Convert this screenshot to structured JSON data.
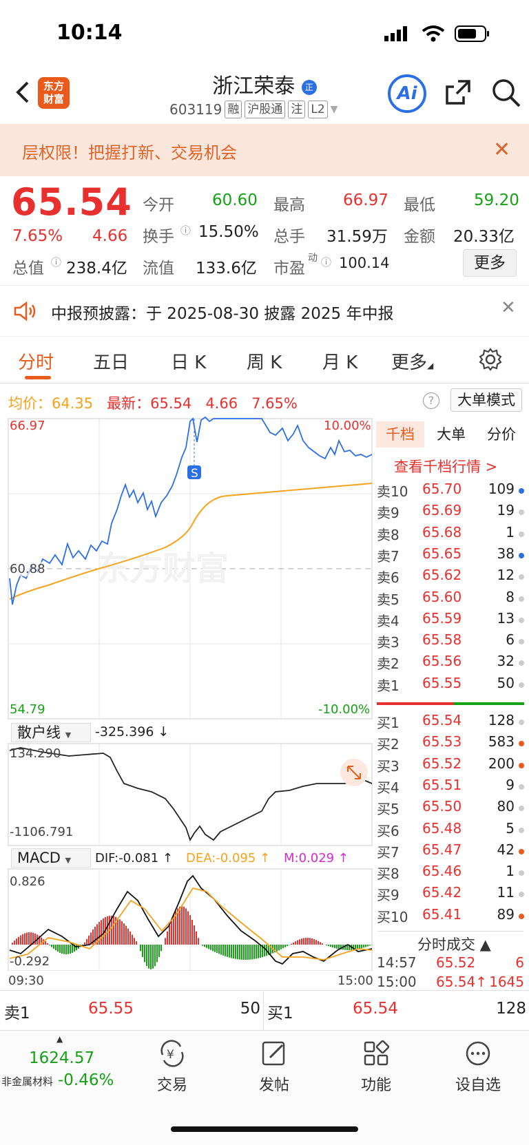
{
  "status_bar": {
    "time": "10:14"
  },
  "header": {
    "logo_text": "东方\n财富",
    "stock_name": "浙江荣泰",
    "stock_code": "603119",
    "tags": [
      "融",
      "沪股通",
      "注",
      "L2"
    ],
    "ai_label": "Ai"
  },
  "banner": {
    "text": "层权限！把握打新、交易机会"
  },
  "quote": {
    "price": "65.54",
    "change_pct": "7.65%",
    "change": "4.66",
    "open_label": "今开",
    "open": "60.60",
    "high_label": "最高",
    "high": "66.97",
    "low_label": "最低",
    "low": "59.20",
    "turnover_label": "换手",
    "turnover": "15.50%",
    "volume_label": "总手",
    "volume": "31.59万",
    "amount_label": "金额",
    "amount": "20.33亿",
    "mktcap_label": "总值",
    "mktcap": "238.4亿",
    "float_label": "流值",
    "float": "133.6亿",
    "pe_label": "市盈",
    "pe_sup": "动",
    "pe": "100.14",
    "more_label": "更多"
  },
  "notice": {
    "text": "中报预披露：于 2025-08-30 披露 2025 年中报"
  },
  "tabs": [
    "分时",
    "五日",
    "日 K",
    "周 K",
    "月 K",
    "更多"
  ],
  "info_row": {
    "avg_label": "均价：",
    "avg": "64.35",
    "latest_label": "最新：",
    "latest": "65.54",
    "change": "4.66",
    "change_pct": "7.65%",
    "big_order_label": "大单模式"
  },
  "chart_labels": {
    "y_top": "66.97",
    "y_mid": "60.88",
    "y_bottom": "54.79",
    "pct_top": "10.00%",
    "pct_bottom": "-10.00%",
    "retail_label": "散户线",
    "retail_value": "-325.396 ↓",
    "retail_top": "134.290",
    "retail_bottom": "-1106.791",
    "macd_label": "MACD",
    "dif": "DIF:-0.081 ↑",
    "dea": "DEA:-0.095 ↑",
    "m": "M:0.029 ↑",
    "macd_top": "0.826",
    "macd_bottom": "-0.292",
    "time_start": "09:30",
    "time_end": "15:00",
    "s_marker": "S",
    "watermark": "东方财富"
  },
  "order_book": {
    "tabs": [
      "千档",
      "大单",
      "分价"
    ],
    "link": "查看千档行情 >",
    "asks": [
      {
        "label": "卖10",
        "price": "65.70",
        "vol": "109",
        "dot": "#2b6fe6"
      },
      {
        "label": "卖9",
        "price": "65.69",
        "vol": "19",
        "dot": "#ccc"
      },
      {
        "label": "卖8",
        "price": "65.68",
        "vol": "1",
        "dot": "#ccc"
      },
      {
        "label": "卖7",
        "price": "65.65",
        "vol": "38",
        "dot": "#2b6fe6"
      },
      {
        "label": "卖6",
        "price": "65.62",
        "vol": "12",
        "dot": "#ccc"
      },
      {
        "label": "卖5",
        "price": "65.60",
        "vol": "8",
        "dot": "#ccc"
      },
      {
        "label": "卖4",
        "price": "65.59",
        "vol": "13",
        "dot": "#ccc"
      },
      {
        "label": "卖3",
        "price": "65.58",
        "vol": "6",
        "dot": "#ccc"
      },
      {
        "label": "卖2",
        "price": "65.56",
        "vol": "32",
        "dot": "#ccc"
      },
      {
        "label": "卖1",
        "price": "65.55",
        "vol": "50",
        "dot": "#ccc"
      }
    ],
    "bids": [
      {
        "label": "买1",
        "price": "65.54",
        "vol": "128",
        "dot": "#ccc"
      },
      {
        "label": "买2",
        "price": "65.53",
        "vol": "583",
        "dot": "#ea5b1b"
      },
      {
        "label": "买3",
        "price": "65.52",
        "vol": "200",
        "dot": "#ea5b1b"
      },
      {
        "label": "买4",
        "price": "65.51",
        "vol": "9",
        "dot": "#ccc"
      },
      {
        "label": "买5",
        "price": "65.50",
        "vol": "80",
        "dot": "#ccc"
      },
      {
        "label": "买6",
        "price": "65.48",
        "vol": "5",
        "dot": "#ccc"
      },
      {
        "label": "买7",
        "price": "65.47",
        "vol": "42",
        "dot": "#ea5b1b"
      },
      {
        "label": "买8",
        "price": "65.46",
        "vol": "1",
        "dot": "#ccc"
      },
      {
        "label": "买9",
        "price": "65.42",
        "vol": "11",
        "dot": "#ccc"
      },
      {
        "label": "买10",
        "price": "65.41",
        "vol": "89",
        "dot": "#ea5b1b"
      }
    ],
    "ticks_title": "分时成交 ▲",
    "ticks": [
      {
        "time": "14:57",
        "price": "65.52",
        "vol": "6"
      },
      {
        "time": "15:00",
        "price": "65.54↑",
        "vol": "1645"
      }
    ]
  },
  "bid_ask": {
    "ask_label": "卖1",
    "ask_price": "65.55",
    "ask_vol": "50",
    "bid_label": "买1",
    "bid_price": "65.54",
    "bid_vol": "128"
  },
  "bottom_nav": {
    "index_value": "1624.57",
    "index_name": "非金属材料",
    "index_change": "-0.46%",
    "items": [
      "交易",
      "发帖",
      "功能",
      "设自选"
    ]
  },
  "colors": {
    "up": "#e8312f",
    "down": "#16a116",
    "accent": "#ea5b1b",
    "price_line": "#2b6fe6",
    "avg_line": "#f7a21b"
  }
}
